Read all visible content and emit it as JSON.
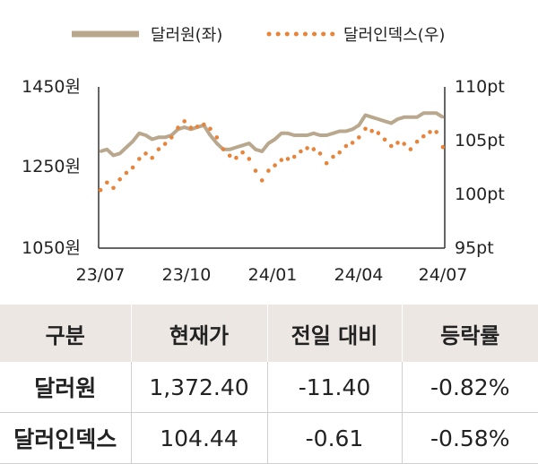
{
  "chart_data": {
    "type": "line",
    "legend": {
      "placement": "top",
      "items": [
        "달러원(좌)",
        "달러인덱스(우)"
      ]
    },
    "x_ticks": [
      "23/07",
      "23/10",
      "24/01",
      "24/04",
      "24/07"
    ],
    "y_left": {
      "ticks": [
        "1450원",
        "1250원",
        "1050원"
      ],
      "range": [
        1050,
        1450
      ]
    },
    "y_right": {
      "ticks": [
        "110pt",
        "105pt",
        "100pt",
        "95pt"
      ],
      "range": [
        95,
        110
      ]
    },
    "series": [
      {
        "name": "달러원(좌)",
        "axis": "left",
        "color": "#b9a88e",
        "style": "solid",
        "x": [
          "2023-07-03",
          "2023-07-10",
          "2023-07-17",
          "2023-07-24",
          "2023-07-31",
          "2023-08-07",
          "2023-08-14",
          "2023-08-21",
          "2023-08-28",
          "2023-09-04",
          "2023-09-11",
          "2023-09-18",
          "2023-09-25",
          "2023-10-02",
          "2023-10-09",
          "2023-10-16",
          "2023-10-23",
          "2023-10-30",
          "2023-11-06",
          "2023-11-13",
          "2023-11-20",
          "2023-11-27",
          "2023-12-04",
          "2023-12-11",
          "2023-12-18",
          "2023-12-25",
          "2024-01-01",
          "2024-01-08",
          "2024-01-15",
          "2024-01-22",
          "2024-01-29",
          "2024-02-05",
          "2024-02-12",
          "2024-02-19",
          "2024-02-26",
          "2024-03-04",
          "2024-03-11",
          "2024-03-18",
          "2024-03-25",
          "2024-04-01",
          "2024-04-08",
          "2024-04-15",
          "2024-04-22",
          "2024-04-29",
          "2024-05-06",
          "2024-05-13",
          "2024-05-20",
          "2024-05-27",
          "2024-06-03",
          "2024-06-10",
          "2024-06-17",
          "2024-06-24",
          "2024-07-01",
          "2024-07-08"
        ],
        "values": [
          1290,
          1295,
          1280,
          1285,
          1300,
          1315,
          1335,
          1330,
          1320,
          1325,
          1325,
          1330,
          1345,
          1350,
          1345,
          1350,
          1355,
          1330,
          1310,
          1295,
          1295,
          1300,
          1305,
          1310,
          1295,
          1290,
          1310,
          1320,
          1335,
          1335,
          1330,
          1330,
          1330,
          1335,
          1330,
          1330,
          1335,
          1340,
          1340,
          1345,
          1355,
          1380,
          1375,
          1370,
          1365,
          1360,
          1370,
          1375,
          1375,
          1375,
          1385,
          1385,
          1385,
          1375
        ]
      },
      {
        "name": "달러인덱스(우)",
        "axis": "right",
        "color": "#e8833a",
        "style": "dotted",
        "x": [
          "2023-07-03",
          "2023-07-10",
          "2023-07-17",
          "2023-07-24",
          "2023-07-31",
          "2023-08-07",
          "2023-08-14",
          "2023-08-21",
          "2023-08-28",
          "2023-09-04",
          "2023-09-11",
          "2023-09-18",
          "2023-09-25",
          "2023-10-02",
          "2023-10-09",
          "2023-10-16",
          "2023-10-23",
          "2023-10-30",
          "2023-11-06",
          "2023-11-13",
          "2023-11-20",
          "2023-11-27",
          "2023-12-04",
          "2023-12-11",
          "2023-12-18",
          "2023-12-25",
          "2024-01-01",
          "2024-01-08",
          "2024-01-15",
          "2024-01-22",
          "2024-01-29",
          "2024-02-05",
          "2024-02-12",
          "2024-02-19",
          "2024-02-26",
          "2024-03-04",
          "2024-03-11",
          "2024-03-18",
          "2024-03-25",
          "2024-04-01",
          "2024-04-08",
          "2024-04-15",
          "2024-04-22",
          "2024-04-29",
          "2024-05-06",
          "2024-05-13",
          "2024-05-20",
          "2024-05-27",
          "2024-06-03",
          "2024-06-10",
          "2024-06-17",
          "2024-06-24",
          "2024-07-01",
          "2024-07-08"
        ],
        "values": [
          100.4,
          101.1,
          100.6,
          101.4,
          102.0,
          102.5,
          103.3,
          103.8,
          103.4,
          104.2,
          104.7,
          105.3,
          106.2,
          106.8,
          106.2,
          106.3,
          106.5,
          106.1,
          105.3,
          104.2,
          103.6,
          103.4,
          103.9,
          103.3,
          102.2,
          101.3,
          102.2,
          102.7,
          103.2,
          103.3,
          103.5,
          104.0,
          104.3,
          104.2,
          103.8,
          102.9,
          103.5,
          103.9,
          104.5,
          104.8,
          105.3,
          106.1,
          105.9,
          105.7,
          105.1,
          104.5,
          104.8,
          104.7,
          104.2,
          104.9,
          105.4,
          105.8,
          105.8,
          104.4
        ]
      }
    ]
  },
  "table": {
    "headers": [
      "구분",
      "현재가",
      "전일 대비",
      "등락률"
    ],
    "rows": [
      [
        "달러원",
        "1,372.40",
        "-11.40",
        "-0.82%"
      ],
      [
        "달러인덱스",
        "104.44",
        "-0.61",
        "-0.58%"
      ]
    ]
  }
}
